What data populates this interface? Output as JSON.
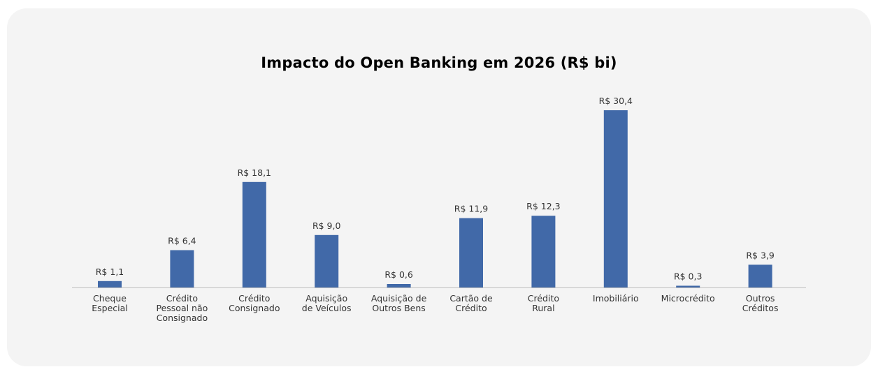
{
  "chart_data": {
    "type": "bar",
    "title": "Impacto do Open Banking em 2026 (R$ bi)",
    "categories": [
      [
        "Cheque",
        "Especial"
      ],
      [
        "Crédito",
        "Pessoal não",
        "Consignado"
      ],
      [
        "Crédito",
        "Consignado"
      ],
      [
        "Aquisição",
        "de Veículos"
      ],
      [
        "Aquisição de",
        "Outros Bens"
      ],
      [
        "Cartão de",
        "Crédito"
      ],
      [
        "Crédito",
        "Rural"
      ],
      [
        "Imobiliário"
      ],
      [
        "Microcrédito"
      ],
      [
        "Outros",
        "Créditos"
      ]
    ],
    "values": [
      1.1,
      6.4,
      18.1,
      9.0,
      0.6,
      11.9,
      12.3,
      30.4,
      0.3,
      3.9
    ],
    "data_labels": [
      "R$ 1,1",
      "R$ 6,4",
      "R$ 18,1",
      "R$ 9,0",
      "R$ 0,6",
      "R$ 11,9",
      "R$ 12,3",
      "R$ 30,4",
      "R$ 0,3",
      "R$ 3,9"
    ],
    "ylim": [
      0,
      30.4
    ],
    "grid": false,
    "legend": "none",
    "bar_color": "#4169a8",
    "axis_color": "#bfbfbf"
  }
}
